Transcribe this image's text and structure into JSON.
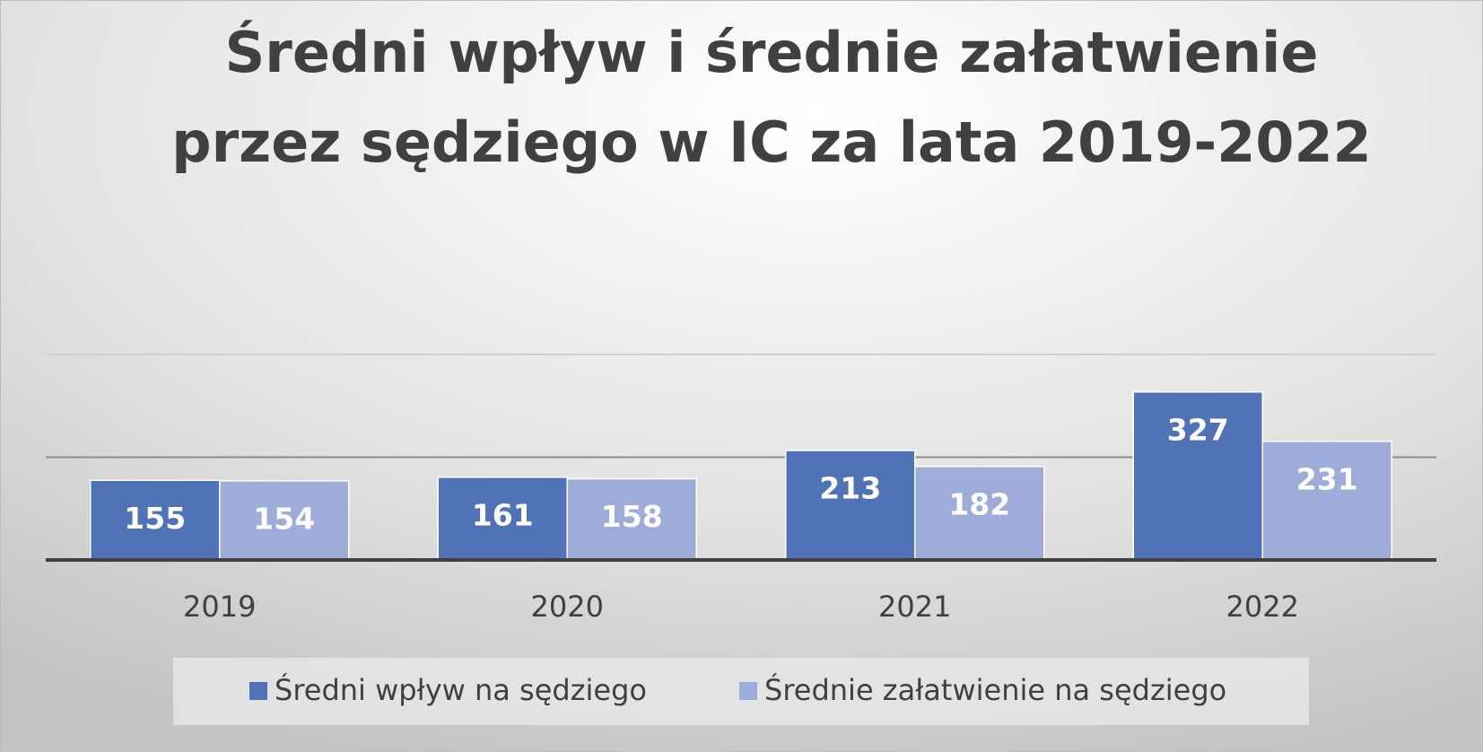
{
  "chart_data": {
    "type": "bar",
    "title": [
      "Średni wpływ i średnie załatwienie",
      "przez sędziego w IC za lata 2019-2022"
    ],
    "categories": [
      "2019",
      "2020",
      "2021",
      "2022"
    ],
    "series": [
      {
        "name": "Średni wpływ na sędziego",
        "color": "#5073b8",
        "values": [
          155,
          161,
          213,
          327
        ]
      },
      {
        "name": "Średnie załatwienie na sędziego",
        "color": "#9eacd9",
        "values": [
          154,
          158,
          182,
          231
        ]
      }
    ],
    "ylim": [
      0,
      400
    ],
    "yticks": [
      0,
      200,
      400
    ],
    "grid": true,
    "legend": "bottom"
  }
}
